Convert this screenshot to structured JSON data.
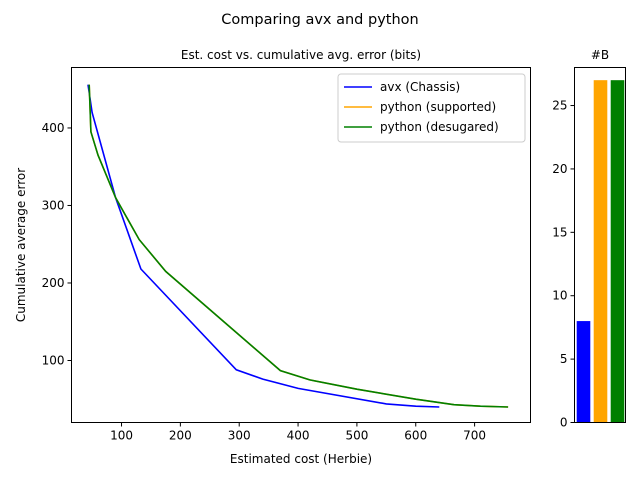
{
  "figure": {
    "suptitle": "Comparing avx and python"
  },
  "chart_data": [
    {
      "type": "line",
      "title": "Est. cost vs. cumulative avg. error (bits)",
      "xlabel": "Estimated cost (Herbie)",
      "ylabel": "Cumulative average error",
      "xlim": [
        15,
        795
      ],
      "ylim": [
        20,
        478
      ],
      "xticks": [
        100,
        200,
        300,
        400,
        500,
        600,
        700
      ],
      "yticks": [
        100,
        200,
        300,
        400
      ],
      "grid": false,
      "legend": "top-right",
      "series": [
        {
          "name": "avx (Chassis)",
          "color": "#0000ff",
          "x": [
            43,
            50,
            90,
            133,
            295,
            340,
            400,
            550,
            600,
            640
          ],
          "y": [
            456,
            420,
            310,
            218,
            88,
            76,
            64,
            44,
            41,
            40
          ]
        },
        {
          "name": "python (supported)",
          "color": "#ffa500",
          "x": [
            45,
            48,
            60,
            90,
            130,
            175,
            370,
            420,
            500,
            600,
            665,
            710,
            757
          ],
          "y": [
            456,
            395,
            365,
            310,
            256,
            215,
            87,
            75,
            63,
            50,
            43,
            41,
            40
          ]
        },
        {
          "name": "python (desugared)",
          "color": "#008000",
          "x": [
            45,
            48,
            60,
            90,
            130,
            175,
            370,
            420,
            500,
            600,
            665,
            710,
            757
          ],
          "y": [
            456,
            395,
            365,
            310,
            256,
            215,
            87,
            75,
            63,
            50,
            43,
            41,
            40
          ]
        }
      ]
    },
    {
      "type": "bar",
      "title": "#B",
      "categories": [
        "avx (Chassis)",
        "python (supported)",
        "python (desugared)"
      ],
      "values": [
        8,
        27,
        27
      ],
      "colors": [
        "#0000ff",
        "#ffa500",
        "#008000"
      ],
      "ylim": [
        0,
        28
      ],
      "yticks": [
        0,
        5,
        10,
        15,
        20,
        25
      ],
      "grid": false
    }
  ]
}
